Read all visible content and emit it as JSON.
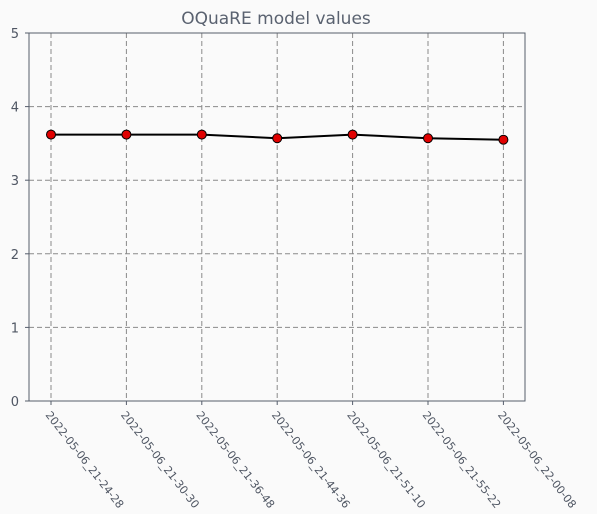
{
  "chart_data": {
    "type": "line",
    "title": "OQuaRE model values",
    "xlabel": "",
    "ylabel": "",
    "x": [
      "2022-05-06_21-24-28",
      "2022-05-06_21-30-30",
      "2022-05-06_21-36-48",
      "2022-05-06_21-44-36",
      "2022-05-06_21-51-10",
      "2022-05-06_21-55-22",
      "2022-05-06_22-00-08"
    ],
    "series": [
      {
        "values": [
          3.62,
          3.62,
          3.62,
          3.57,
          3.62,
          3.57,
          3.55
        ]
      }
    ],
    "ylim": [
      0,
      5
    ],
    "yticks": [
      "0",
      "1",
      "2",
      "3",
      "4",
      "5"
    ],
    "grid": true,
    "line_color": "#000000",
    "marker_color": "#e00000",
    "marker_edge_color": "#000000"
  }
}
